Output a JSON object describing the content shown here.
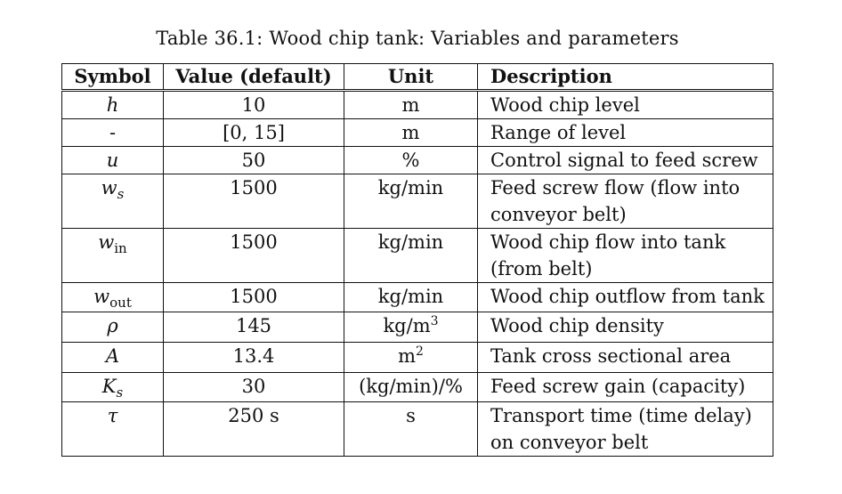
{
  "caption": "Table 36.1: Wood chip tank: Variables and parameters",
  "headers": {
    "symbol": "Symbol",
    "value": "Value (default)",
    "unit": "Unit",
    "description": "Description"
  },
  "rows": [
    {
      "symbol": "h",
      "subscript": "",
      "value": "10",
      "unit": "m",
      "unit_sup": "",
      "desc": "Wood chip level"
    },
    {
      "symbol": "-",
      "subscript": "",
      "value": "[0, 15]",
      "unit": "m",
      "unit_sup": "",
      "desc": "Range of level"
    },
    {
      "symbol": "u",
      "subscript": "",
      "value": "50",
      "unit": "%",
      "unit_sup": "",
      "desc": "Control signal to feed screw"
    },
    {
      "symbol": "w",
      "subscript": "s",
      "value": "1500",
      "unit": "kg/min",
      "unit_sup": "",
      "desc": "Feed screw flow (flow into conveyor belt)"
    },
    {
      "symbol": "w",
      "subscript": "in",
      "value": "1500",
      "unit": "kg/min",
      "unit_sup": "",
      "desc": "Wood chip flow into tank (from belt)"
    },
    {
      "symbol": "w",
      "subscript": "out",
      "value": "1500",
      "unit": "kg/min",
      "unit_sup": "",
      "desc": "Wood chip outflow from tank"
    },
    {
      "symbol": "ρ",
      "subscript": "",
      "value": "145",
      "unit": "kg/m",
      "unit_sup": "3",
      "desc": "Wood chip density"
    },
    {
      "symbol": "A",
      "subscript": "",
      "value": "13.4",
      "unit": "m",
      "unit_sup": "2",
      "desc": "Tank cross sectional area"
    },
    {
      "symbol": "K",
      "subscript": "s",
      "value": "30",
      "unit": "(kg/min)/%",
      "unit_sup": "",
      "desc": "Feed screw gain (capacity)"
    },
    {
      "symbol": "τ",
      "subscript": "",
      "value": "250 s",
      "unit": "s",
      "unit_sup": "",
      "desc": "Transport time (time delay) on conveyor belt"
    }
  ]
}
